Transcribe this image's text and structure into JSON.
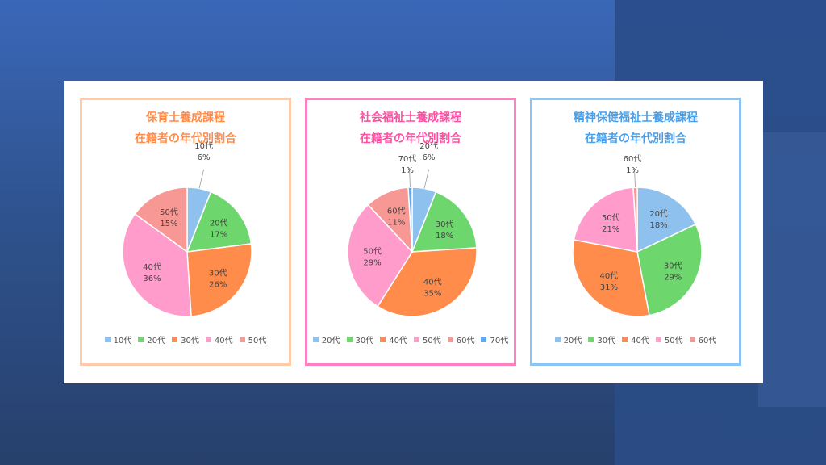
{
  "colors": {
    "c10": "#8fc1ee",
    "c20": "#6dd66d",
    "c30": "#ff8c4a",
    "c40": "#ff9ccc",
    "c50": "#f79894",
    "c70": "#5ea8f2"
  },
  "chart_data": [
    {
      "type": "pie",
      "title_line1": "保育士養成課程",
      "title_line2": "在籍者の年代別割合",
      "border_color": "#ffcaa8",
      "title_color": "#ff8c4a",
      "slices": [
        {
          "label": "10代",
          "value": 6,
          "pct": "6%",
          "color": "#8fc1ee"
        },
        {
          "label": "20代",
          "value": 17,
          "pct": "17%",
          "color": "#6dd66d"
        },
        {
          "label": "30代",
          "value": 26,
          "pct": "26%",
          "color": "#ff8c4a"
        },
        {
          "label": "40代",
          "value": 36,
          "pct": "36%",
          "color": "#ff9ccc"
        },
        {
          "label": "50代",
          "value": 15,
          "pct": "15%",
          "color": "#f79894"
        }
      ],
      "legend": [
        "10代",
        "20代",
        "30代",
        "40代",
        "50代"
      ]
    },
    {
      "type": "pie",
      "title_line1": "社会福祉士養成課程",
      "title_line2": "在籍者の年代別割合",
      "border_color": "#ff7fc0",
      "title_color": "#ff4fa3",
      "slices": [
        {
          "label": "20代",
          "value": 6,
          "pct": "6%",
          "color": "#8fc1ee"
        },
        {
          "label": "30代",
          "value": 18,
          "pct": "18%",
          "color": "#6dd66d"
        },
        {
          "label": "40代",
          "value": 35,
          "pct": "35%",
          "color": "#ff8c4a"
        },
        {
          "label": "50代",
          "value": 29,
          "pct": "29%",
          "color": "#ff9ccc"
        },
        {
          "label": "60代",
          "value": 11,
          "pct": "11%",
          "color": "#f79894"
        },
        {
          "label": "70代",
          "value": 1,
          "pct": "1%",
          "color": "#5ea8f2"
        }
      ],
      "legend": [
        "20代",
        "30代",
        "40代",
        "50代",
        "60代",
        "70代"
      ]
    },
    {
      "type": "pie",
      "title_line1": "精神保健福祉士養成課程",
      "title_line2": "在籍者の年代別割合",
      "border_color": "#8cc4f5",
      "title_color": "#4a9fe8",
      "slices": [
        {
          "label": "20代",
          "value": 18,
          "pct": "18%",
          "color": "#8fc1ee"
        },
        {
          "label": "30代",
          "value": 29,
          "pct": "29%",
          "color": "#6dd66d"
        },
        {
          "label": "40代",
          "value": 31,
          "pct": "31%",
          "color": "#ff8c4a"
        },
        {
          "label": "50代",
          "value": 21,
          "pct": "21%",
          "color": "#ff9ccc"
        },
        {
          "label": "60代",
          "value": 1,
          "pct": "1%",
          "color": "#f79894"
        }
      ],
      "legend": [
        "20代",
        "30代",
        "40代",
        "50代",
        "60代"
      ]
    }
  ]
}
